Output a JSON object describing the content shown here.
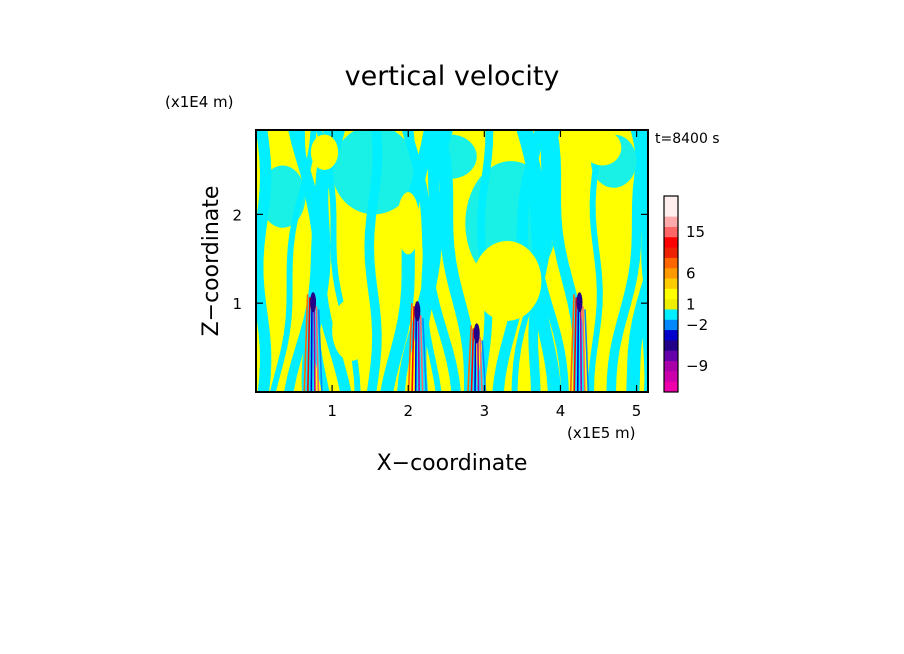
{
  "chart_data": {
    "type": "heatmap",
    "title": "vertical velocity",
    "xlabel": "X−coordinate",
    "ylabel": "Z−coordinate",
    "x_unit": "(x1E5 m)",
    "y_unit": "(x1E4 m)",
    "time_label": "t=8400 s",
    "xlim": [
      0.0,
      5.15
    ],
    "ylim": [
      0.0,
      2.95
    ],
    "x_ticks": [
      1,
      2,
      3,
      4,
      5
    ],
    "y_ticks": [
      1,
      2
    ],
    "grid": false,
    "background_sign": {
      "negative_color": "#00EEFF",
      "positive_color": "#FFFF00"
    },
    "updraft_columns": [
      {
        "x": 0.75,
        "z_top": 1.1,
        "w_min": -9,
        "w_max": 15
      },
      {
        "x": 2.12,
        "z_top": 1.0,
        "w_min": -9,
        "w_max": 6
      },
      {
        "x": 2.9,
        "z_top": 0.75,
        "w_min": -9,
        "w_max": 6
      },
      {
        "x": 4.25,
        "z_top": 1.1,
        "w_min": -9,
        "w_max": 15
      }
    ],
    "colorbar": {
      "labels": [
        "15",
        "6",
        "1",
        "−2",
        "−9"
      ],
      "segments": [
        {
          "color": "#FFEEEE"
        },
        {
          "color": "#FFEEEE"
        },
        {
          "color": "#FFAAAA"
        },
        {
          "color": "#FF6666"
        },
        {
          "color": "#FF0000"
        },
        {
          "color": "#EE2200"
        },
        {
          "color": "#FF6600"
        },
        {
          "color": "#FF9900"
        },
        {
          "color": "#FFCC00"
        },
        {
          "color": "#FFFF00"
        },
        {
          "color": "#EEEE00"
        },
        {
          "color": "#00EEFF"
        },
        {
          "color": "#0088FF"
        },
        {
          "color": "#0000CC"
        },
        {
          "color": "#220088"
        },
        {
          "color": "#6600AA"
        },
        {
          "color": "#AA00AA"
        },
        {
          "color": "#CC00AA"
        },
        {
          "color": "#EE00AA"
        }
      ]
    }
  }
}
